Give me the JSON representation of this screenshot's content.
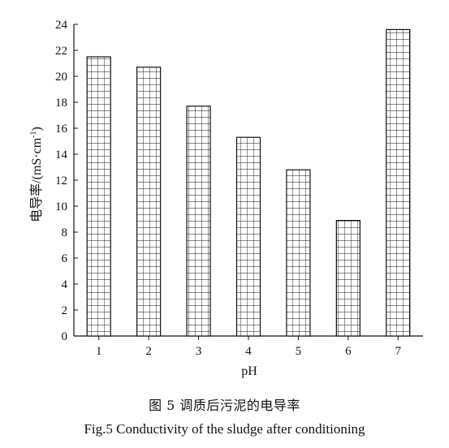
{
  "chart_data": {
    "type": "bar",
    "categories": [
      "1",
      "2",
      "3",
      "4",
      "5",
      "6",
      "7"
    ],
    "values": [
      21.5,
      20.7,
      17.7,
      15.3,
      12.8,
      8.9,
      23.6
    ],
    "xlabel": "pH",
    "ylabel": "电导率/(mS·cm-1)",
    "ylabel_main": "电导率/(mS·cm",
    "ylabel_sup": "-1",
    "ylabel_close": ")",
    "ylim": [
      0,
      24
    ],
    "yticks": [
      0,
      2,
      4,
      6,
      8,
      10,
      12,
      14,
      16,
      18,
      20,
      22,
      24
    ],
    "grid": false,
    "bar_pattern": "grid-hatch"
  },
  "caption": {
    "chinese": "图 5   调质后污泥的电导率",
    "english": "Fig.5   Conductivity of the sludge after conditioning"
  }
}
